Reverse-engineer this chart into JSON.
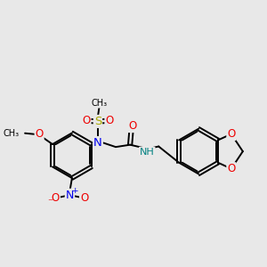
{
  "bg_color": "#e8e8e8",
  "bond_color": "#000000",
  "bond_lw": 1.4,
  "atom_colors": {
    "N": "#0000ee",
    "O": "#ee0000",
    "S": "#aaaa00",
    "NH": "#008080"
  },
  "fs": 8.5,
  "figsize": [
    3.0,
    3.0
  ],
  "dpi": 100
}
